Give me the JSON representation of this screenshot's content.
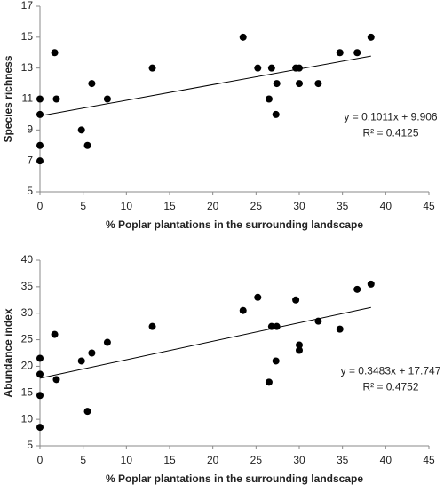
{
  "chart_data": [
    {
      "type": "scatter",
      "x_label": "% Poplar plantations in the surrounding landscape",
      "y_label": "Species richness",
      "x": [
        0,
        0,
        0,
        0,
        1.7,
        1.9,
        4.8,
        5.5,
        6,
        7.8,
        13,
        23.5,
        25.2,
        26.5,
        26.8,
        27.3,
        27.4,
        29.6,
        30,
        30,
        32.2,
        34.7,
        36.7,
        38.3
      ],
      "values": [
        7,
        8,
        10,
        11,
        14,
        11,
        9,
        8,
        12,
        11,
        13,
        15,
        13,
        11,
        13,
        10,
        12,
        13,
        13,
        12,
        12,
        14,
        14,
        15
      ],
      "color": "#000000",
      "xlim": [
        0,
        45
      ],
      "xticks": [
        0,
        5,
        10,
        15,
        20,
        25,
        30,
        35,
        40,
        45
      ],
      "ylim": [
        5,
        17
      ],
      "yticks": [
        5,
        7,
        9,
        11,
        13,
        15,
        17
      ],
      "trendline": {
        "equation": "y = 0.1011x + 9.906",
        "r2": "R² = 0.4125",
        "slope": 0.1011,
        "intercept": 9.906
      }
    },
    {
      "type": "scatter",
      "x_label": "% Poplar plantations in the surrounding landscape",
      "y_label": "Abundance index",
      "x": [
        0,
        0,
        0,
        0,
        1.7,
        1.9,
        4.8,
        5.5,
        6,
        7.8,
        13,
        23.5,
        25.2,
        26.5,
        26.8,
        27.3,
        27.4,
        29.6,
        30,
        30,
        32.2,
        34.7,
        36.7,
        38.3
      ],
      "values": [
        8.5,
        14.5,
        18.5,
        21.5,
        26,
        17.5,
        21,
        11.5,
        22.5,
        24.5,
        27.5,
        30.5,
        33,
        17,
        27.5,
        21,
        27.5,
        32.5,
        23,
        24,
        28.5,
        27,
        34.5,
        35.5
      ],
      "color": "#000000",
      "xlim": [
        0,
        45
      ],
      "xticks": [
        0,
        5,
        10,
        15,
        20,
        25,
        30,
        35,
        40,
        45
      ],
      "ylim": [
        5,
        40
      ],
      "yticks": [
        5,
        10,
        15,
        20,
        25,
        30,
        35,
        40
      ],
      "trendline": {
        "equation": "y = 0.3483x + 17.747",
        "r2": "R² = 0.4752",
        "slope": 0.3483,
        "intercept": 17.747
      }
    }
  ]
}
